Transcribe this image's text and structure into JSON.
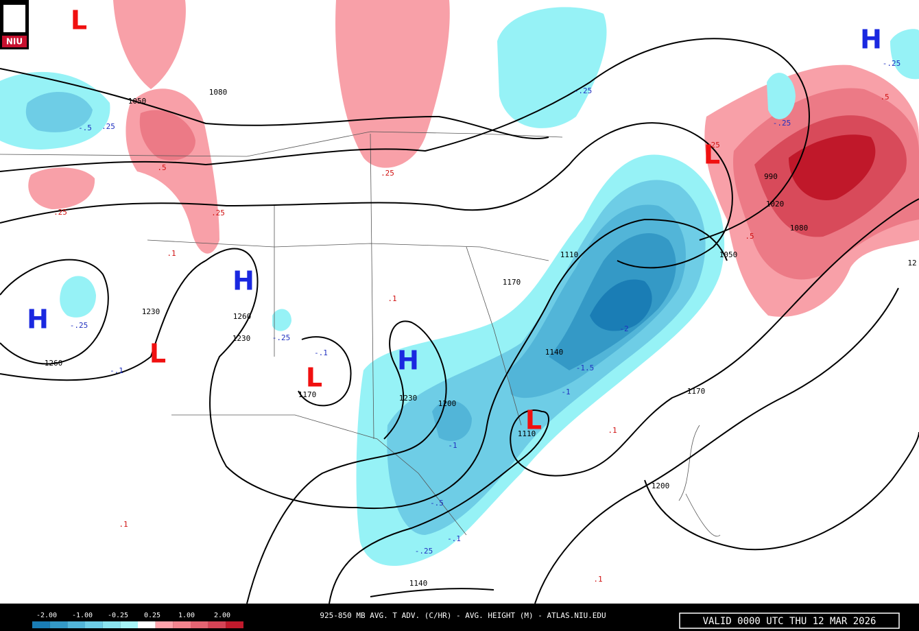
{
  "logo": "NIU",
  "pressure_centers": [
    "L",
    "L",
    "L",
    "L",
    "L",
    "H",
    "H",
    "H",
    "H"
  ],
  "contour_labels": [
    "1080",
    "1050",
    "-.5",
    ".25",
    ".5",
    ".25",
    ".25",
    ".1",
    ".25",
    "-.25",
    "1110",
    "1170",
    ".1",
    "1230",
    "-.25",
    "1260",
    "1230",
    "-.25",
    "-.1",
    "1260",
    "-.1",
    "1170",
    "1140",
    "-1.5",
    "-2",
    "-1",
    "1230",
    "1200",
    "-1",
    "1110",
    "1170",
    ".1",
    "1200",
    "-.5",
    "-.25",
    "-.1",
    "1140",
    ".1",
    ".1",
    "-.25",
    "-.25",
    ".25",
    "990",
    "1020",
    "1080",
    "1050",
    ".5",
    ".5",
    "12"
  ],
  "legend": {
    "labels": [
      "-2.00",
      "-1.00",
      "-0.25",
      "0.25",
      "1.00",
      "2.00"
    ],
    "colors": [
      "#1a7db5",
      "#3499c6",
      "#52b5d8",
      "#6ecde6",
      "#8ae4ef",
      "#a6f6f8",
      "#ffffff",
      "#ffa4ac",
      "#f3848e",
      "#e46472",
      "#d44456",
      "#c01a2c"
    ]
  },
  "footer": {
    "title": "925-850 MB AVG. T ADV. (C/HR) - AVG. HEIGHT (M) - ATLAS.NIU.EDU",
    "valid": "VALID 0000 UTC THU 12 MAR 2026"
  }
}
